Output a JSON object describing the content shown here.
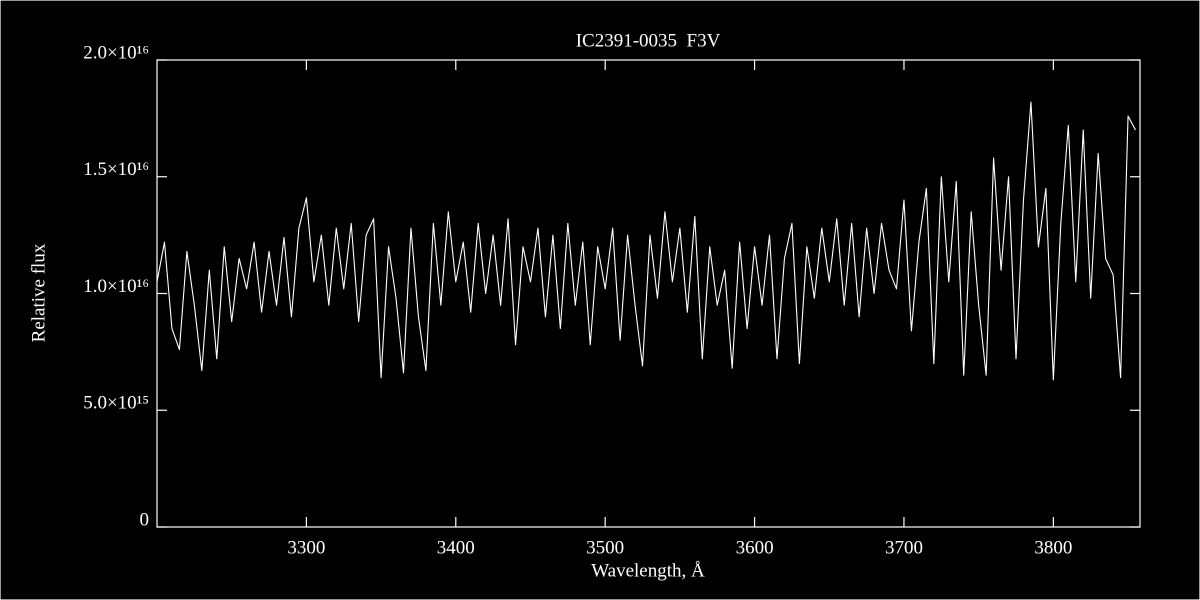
{
  "chart_data": {
    "type": "line",
    "title": "IC2391-0035  F3V",
    "xlabel": "Wavelength, Å",
    "ylabel": "Relative flux",
    "color": "#ffffff",
    "x": [
      3200,
      3205,
      3210,
      3215,
      3220,
      3225,
      3230,
      3235,
      3240,
      3245,
      3250,
      3255,
      3260,
      3265,
      3270,
      3275,
      3280,
      3285,
      3290,
      3295,
      3300,
      3305,
      3310,
      3315,
      3320,
      3325,
      3330,
      3335,
      3340,
      3345,
      3350,
      3355,
      3360,
      3365,
      3370,
      3375,
      3380,
      3385,
      3390,
      3395,
      3400,
      3405,
      3410,
      3415,
      3420,
      3425,
      3430,
      3435,
      3440,
      3445,
      3450,
      3455,
      3460,
      3465,
      3470,
      3475,
      3480,
      3485,
      3490,
      3495,
      3500,
      3505,
      3510,
      3515,
      3520,
      3525,
      3530,
      3535,
      3540,
      3545,
      3550,
      3555,
      3560,
      3565,
      3570,
      3575,
      3580,
      3585,
      3590,
      3595,
      3600,
      3605,
      3610,
      3615,
      3620,
      3625,
      3630,
      3635,
      3640,
      3645,
      3650,
      3655,
      3660,
      3665,
      3670,
      3675,
      3680,
      3685,
      3690,
      3695,
      3700,
      3705,
      3710,
      3715,
      3720,
      3725,
      3730,
      3735,
      3740,
      3745,
      3750,
      3755,
      3760,
      3765,
      3770,
      3775,
      3780,
      3785,
      3790,
      3795,
      3800,
      3805,
      3810,
      3815,
      3820,
      3825,
      3830,
      3835,
      3840,
      3845,
      3850,
      3855
    ],
    "values": [
      1.05e+16,
      1.22e+16,
      8500000000000000.0,
      7600000000000000.0,
      1.18e+16,
      9500000000000000.0,
      6700000000000000.0,
      1.1e+16,
      7200000000000000.0,
      1.2e+16,
      8800000000000000.0,
      1.15e+16,
      1.02e+16,
      1.22e+16,
      9200000000000000.0,
      1.18e+16,
      9500000000000000.0,
      1.24e+16,
      9000000000000000.0,
      1.28e+16,
      1.41e+16,
      1.05e+16,
      1.25e+16,
      9500000000000000.0,
      1.28e+16,
      1.02e+16,
      1.3e+16,
      8800000000000000.0,
      1.25e+16,
      1.32e+16,
      6400000000000000.0,
      1.2e+16,
      9800000000000000.0,
      6600000000000000.0,
      1.28e+16,
      9000000000000000.0,
      6700000000000000.0,
      1.3e+16,
      9500000000000000.0,
      1.35e+16,
      1.05e+16,
      1.22e+16,
      9200000000000000.0,
      1.3e+16,
      1e+16,
      1.25e+16,
      9500000000000000.0,
      1.32e+16,
      7800000000000000.0,
      1.2e+16,
      1.05e+16,
      1.28e+16,
      9000000000000000.0,
      1.25e+16,
      8500000000000000.0,
      1.3e+16,
      9500000000000000.0,
      1.22e+16,
      7800000000000000.0,
      1.2e+16,
      1.02e+16,
      1.28e+16,
      8000000000000000.0,
      1.25e+16,
      9500000000000000.0,
      6900000000000000.0,
      1.25e+16,
      9800000000000000.0,
      1.35e+16,
      1.05e+16,
      1.28e+16,
      9200000000000000.0,
      1.33e+16,
      7200000000000000.0,
      1.2e+16,
      9500000000000000.0,
      1.1e+16,
      6800000000000000.0,
      1.22e+16,
      8500000000000000.0,
      1.2e+16,
      9500000000000000.0,
      1.25e+16,
      7200000000000000.0,
      1.15e+16,
      1.3e+16,
      7000000000000000.0,
      1.2e+16,
      9800000000000000.0,
      1.28e+16,
      1.05e+16,
      1.32e+16,
      9500000000000000.0,
      1.3e+16,
      9000000000000000.0,
      1.28e+16,
      1e+16,
      1.3e+16,
      1.1e+16,
      1.02e+16,
      1.4e+16,
      8400000000000000.0,
      1.22e+16,
      1.45e+16,
      7000000000000000.0,
      1.5e+16,
      1.05e+16,
      1.48e+16,
      6500000000000000.0,
      1.35e+16,
      9500000000000000.0,
      6500000000000000.0,
      1.58e+16,
      1.1e+16,
      1.5e+16,
      7200000000000000.0,
      1.4e+16,
      1.82e+16,
      1.2e+16,
      1.45e+16,
      6300000000000000.0,
      1.3e+16,
      1.72e+16,
      1.05e+16,
      1.7e+16,
      9800000000000000.0,
      1.6e+16,
      1.15e+16,
      1.08e+16,
      6400000000000000.0,
      1.76e+16,
      1.7e+16
    ],
    "xlim": [
      3200,
      3858
    ],
    "xticks": [
      3300,
      3400,
      3500,
      3600,
      3700,
      3800
    ],
    "ylim": [
      0,
      2e+16
    ],
    "yticks": [
      0,
      {
        "value": 5000000000000000.0,
        "label": "5.0×10¹⁵"
      },
      {
        "value": 1e+16,
        "label": "1.0×10¹⁶"
      },
      {
        "value": 1.5e+16,
        "label": "1.5×10¹⁶"
      },
      {
        "value": 2e+16,
        "label": "2.0×10¹⁶"
      }
    ]
  }
}
